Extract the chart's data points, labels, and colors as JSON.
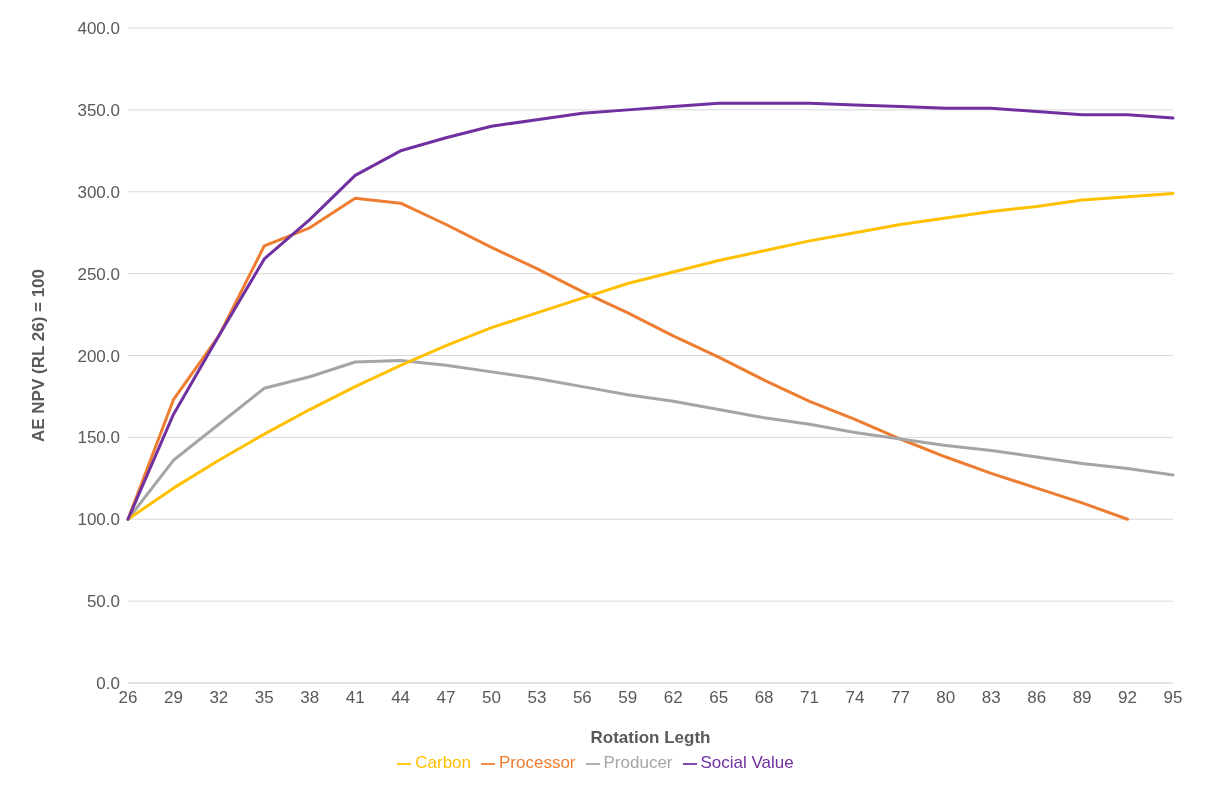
{
  "chart_data": {
    "type": "line",
    "xlabel": "Rotation Legth",
    "ylabel": "AE NPV (RL 26) = 100",
    "categories": [
      "26",
      "29",
      "32",
      "35",
      "38",
      "41",
      "44",
      "47",
      "50",
      "53",
      "56",
      "59",
      "62",
      "65",
      "68",
      "71",
      "74",
      "77",
      "80",
      "83",
      "86",
      "89",
      "92",
      "95"
    ],
    "ylim": [
      0,
      400
    ],
    "yticks": [
      {
        "value": 0,
        "label": "0.0"
      },
      {
        "value": 50,
        "label": "50.0"
      },
      {
        "value": 100,
        "label": "100.0"
      },
      {
        "value": 150,
        "label": "150.0"
      },
      {
        "value": 200,
        "label": "200.0"
      },
      {
        "value": 250,
        "label": "250.0"
      },
      {
        "value": 300,
        "label": "300.0"
      },
      {
        "value": 350,
        "label": "350.0"
      },
      {
        "value": 400,
        "label": "400.0"
      }
    ],
    "grid": "y",
    "legend": "bottom",
    "marker": "none",
    "line_style": "solid",
    "series": [
      {
        "name": "Processor",
        "color": "#ed7d31",
        "values": [
          100,
          173,
          212,
          267,
          278,
          296,
          293,
          280,
          266,
          253,
          239,
          226,
          212,
          199,
          185,
          172,
          161,
          149,
          138,
          128,
          119,
          110,
          100,
          null
        ]
      },
      {
        "name": "Producer",
        "color": "#a5a5a5",
        "values": [
          100,
          136,
          158,
          180,
          187,
          196,
          197,
          194,
          190,
          186,
          181,
          176,
          172,
          167,
          162,
          158,
          153,
          149,
          145,
          142,
          138,
          134,
          131,
          127
        ]
      },
      {
        "name": "Carbon",
        "color": "#ffc000",
        "values": [
          100,
          119,
          136,
          152,
          167,
          181,
          194,
          206,
          217,
          226,
          235,
          244,
          251,
          258,
          264,
          270,
          275,
          280,
          284,
          288,
          291,
          295,
          297,
          299
        ]
      },
      {
        "name": "Social Value",
        "color": "#7030a0",
        "values": [
          100,
          164,
          212,
          259,
          283,
          310,
          325,
          333,
          340,
          344,
          348,
          350,
          352,
          354,
          354,
          354,
          353,
          352,
          351,
          351,
          349,
          347,
          347,
          345
        ]
      }
    ]
  }
}
